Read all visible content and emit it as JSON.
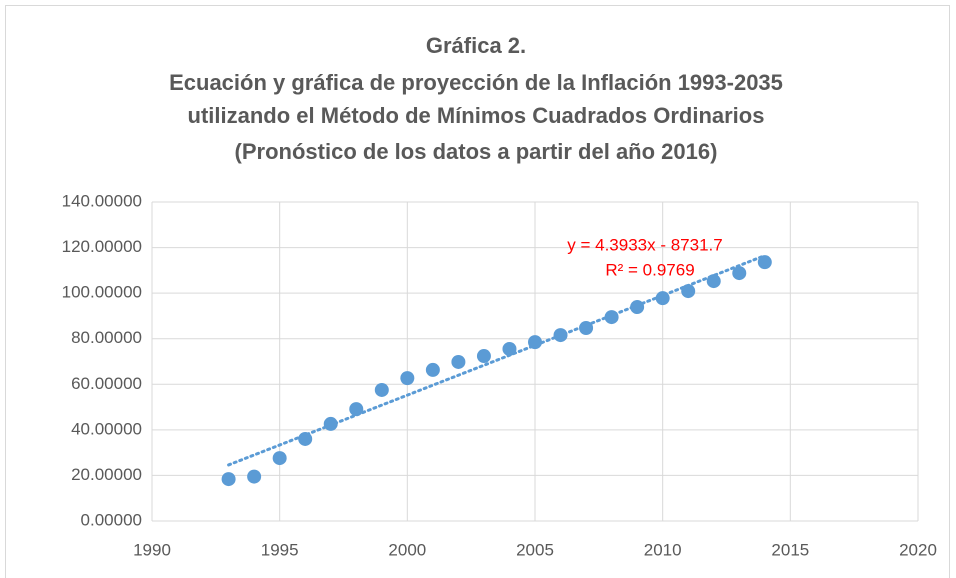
{
  "chart_data": {
    "type": "scatter",
    "title": [
      "Gráfica 2.",
      "Ecuación y gráfica de proyección de la Inflación 1993-2035",
      "utilizando el Método de Mínimos Cuadrados Ordinarios",
      "(Pronóstico de los datos a partir del año 2016)"
    ],
    "x": [
      1993,
      1994,
      1995,
      1996,
      1997,
      1998,
      1999,
      2000,
      2001,
      2002,
      2003,
      2004,
      2005,
      2006,
      2007,
      2008,
      2009,
      2010,
      2011,
      2012,
      2013,
      2014
    ],
    "values": [
      18.4,
      19.5,
      27.6,
      36.0,
      42.6,
      49.1,
      57.5,
      62.7,
      66.3,
      69.8,
      72.4,
      75.5,
      78.5,
      81.6,
      84.7,
      89.5,
      93.9,
      97.8,
      100.9,
      105.3,
      108.8,
      113.6
    ],
    "color": "#5b9bd5",
    "trendline": true,
    "annotations": [
      "y = 4.3933x - 8731.7",
      "R² = 0.9769"
    ],
    "xlim": [
      1990,
      2020
    ],
    "xticks": [
      1990,
      1995,
      2000,
      2005,
      2010,
      2015,
      2020
    ],
    "ylim": [
      0,
      140
    ],
    "yticks": [
      {
        "value": 0,
        "label": "0.00000"
      },
      {
        "value": 20,
        "label": "20.00000"
      },
      {
        "value": 40,
        "label": "40.00000"
      },
      {
        "value": 60,
        "label": "60.00000"
      },
      {
        "value": 80,
        "label": "80.00000"
      },
      {
        "value": 100,
        "label": "100.00000"
      },
      {
        "value": 120,
        "label": "120.00000"
      },
      {
        "value": 140,
        "label": "140.00000"
      }
    ],
    "grid": true
  }
}
